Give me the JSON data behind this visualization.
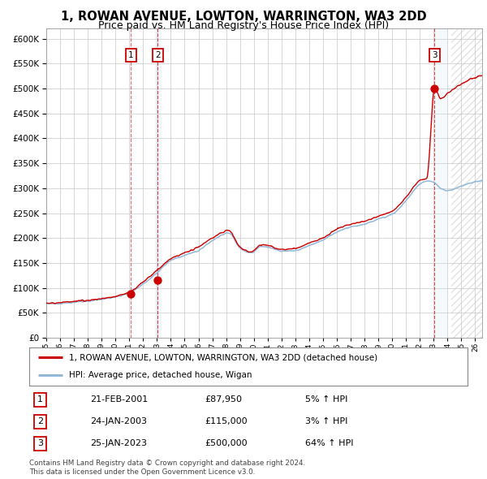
{
  "title": "1, ROWAN AVENUE, LOWTON, WARRINGTON, WA3 2DD",
  "subtitle": "Price paid vs. HM Land Registry's House Price Index (HPI)",
  "title_fontsize": 10.5,
  "subtitle_fontsize": 9,
  "xlim": [
    1995.0,
    2026.5
  ],
  "ylim": [
    0,
    620000
  ],
  "yticks": [
    0,
    50000,
    100000,
    150000,
    200000,
    250000,
    300000,
    350000,
    400000,
    450000,
    500000,
    550000,
    600000
  ],
  "hpi_color": "#92b8d8",
  "price_color": "#cc0000",
  "sale_dot_color": "#cc0000",
  "background_color": "#ffffff",
  "grid_color": "#c8c8c8",
  "shade_color": "#d0e4f4",
  "hatch_color": "#c8c8c8",
  "transactions": [
    {
      "num": 1,
      "date": 2001.12,
      "price": 87950,
      "label": "21-FEB-2001",
      "price_label": "£87,950",
      "hpi_label": "5% ↑ HPI"
    },
    {
      "num": 2,
      "date": 2003.06,
      "price": 115000,
      "label": "24-JAN-2003",
      "price_label": "£115,000",
      "hpi_label": "3% ↑ HPI"
    },
    {
      "num": 3,
      "date": 2023.06,
      "price": 500000,
      "label": "25-JAN-2023",
      "price_label": "£500,000",
      "hpi_label": "64% ↑ HPI"
    }
  ],
  "span1_start": 2001.0,
  "span1_end": 2001.25,
  "span2_start": 2002.85,
  "span2_end": 2003.35,
  "span3_start": 2023.0,
  "span3_end": 2024.0,
  "hatch_start": 2024.3,
  "legend_line1": "1, ROWAN AVENUE, LOWTON, WARRINGTON, WA3 2DD (detached house)",
  "legend_line2": "HPI: Average price, detached house, Wigan",
  "footer1": "Contains HM Land Registry data © Crown copyright and database right 2024.",
  "footer2": "This data is licensed under the Open Government Licence v3.0."
}
